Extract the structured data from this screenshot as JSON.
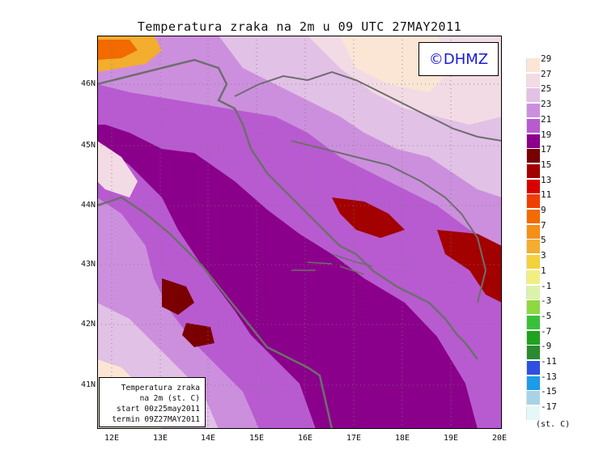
{
  "title": "Temperatura zraka na 2m u 09 UTC 27MAY2011",
  "credit": "©DHMZ",
  "info_box": {
    "line1": "Temperatura zraka",
    "line2": "na 2m (st. C)",
    "line3": "start 00z25may2011",
    "line4": "termin 09Z27MAY2011"
  },
  "lat_labels": [
    "46N",
    "45N",
    "44N",
    "43N",
    "42N",
    "41N"
  ],
  "lon_labels": [
    "12E",
    "13E",
    "14E",
    "15E",
    "16E",
    "17E",
    "18E",
    "19E",
    "20E"
  ],
  "legend": {
    "unit": "(st. C)",
    "labels": [
      "29",
      "27",
      "25",
      "23",
      "21",
      "19",
      "17",
      "15",
      "13",
      "11",
      "9",
      "7",
      "5",
      "3",
      "1",
      "-1",
      "-3",
      "-5",
      "-7",
      "-9",
      "-11",
      "-13",
      "-15",
      "-17"
    ],
    "colors": [
      "#fbe6d6",
      "#f3dbe5",
      "#e2c1e6",
      "#cc8fdd",
      "#b85bd0",
      "#8b008b",
      "#7a0000",
      "#a30000",
      "#d90000",
      "#ef3e00",
      "#f26a00",
      "#f58f16",
      "#f3ad2f",
      "#f3d23b",
      "#f2ef82",
      "#dbf2ab",
      "#8ed840",
      "#38c138",
      "#1fa31f",
      "#2a8a30",
      "#2e50e0",
      "#1d9be6",
      "#a7d3e6",
      "#e6f7f7"
    ]
  },
  "colors": {
    "sea": "#8b008b",
    "coast": "#6e6e6e"
  }
}
